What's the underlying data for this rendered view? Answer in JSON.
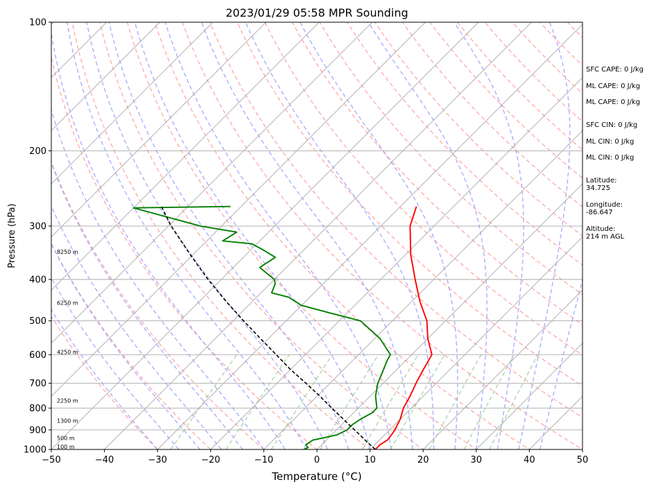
{
  "chart_data": {
    "type": "line",
    "title": "2023/01/29 05:58 MPR Sounding",
    "xlabel": "Temperature (°C)",
    "ylabel": "Pressure (hPa)",
    "xlim": [
      -50,
      50
    ],
    "ylim": [
      1000,
      100
    ],
    "y_scale": "log",
    "x_ticks": [
      -50,
      -40,
      -30,
      -20,
      -10,
      0,
      10,
      20,
      30,
      40,
      50
    ],
    "x_tick_labels": [
      "−50",
      "−40",
      "−30",
      "−20",
      "−10",
      "0",
      "10",
      "20",
      "30",
      "40",
      "50"
    ],
    "y_ticks": [
      1000,
      900,
      800,
      700,
      600,
      500,
      400,
      300,
      200,
      100
    ],
    "y_tick_labels": [
      "1000",
      "900",
      "800",
      "700",
      "600",
      "500",
      "400",
      "300",
      "200",
      "100"
    ],
    "grid": true,
    "skew_deg": 45,
    "background_lines": {
      "isotherms_step": 10,
      "dry_adiabats": true,
      "moist_adiabats": true,
      "mixing_ratio_lines": true
    },
    "colors": {
      "temperature": "#ff0000",
      "dewpoint": "#008000",
      "parcel": "#000000",
      "isotherm": "#a9a9a9",
      "dry_adiabat": "#ff9999",
      "moist_adiabat": "#9999ff",
      "mixing_ratio": "#99cc99"
    },
    "series": [
      {
        "key": "temperature",
        "pressure": [
          1000,
          975,
          950,
          925,
          900,
          850,
          800,
          750,
          700,
          650,
          600,
          550,
          500,
          450,
          400,
          350,
          300,
          270
        ],
        "values": [
          11.0,
          11.0,
          11.5,
          11.3,
          11.0,
          10.0,
          8.5,
          7.5,
          6.2,
          5.0,
          3.8,
          0.0,
          -3.5,
          -8.5,
          -13.5,
          -19.0,
          -24.5,
          -27.0
        ]
      },
      {
        "key": "dewpoint",
        "pressure": [
          1000,
          990,
          975,
          950,
          940,
          925,
          900,
          875,
          850,
          820,
          800,
          750,
          700,
          650,
          620,
          600,
          550,
          500,
          480,
          460,
          440,
          430,
          410,
          400,
          385,
          375,
          355,
          340,
          330,
          325,
          310,
          300,
          272,
          270
        ],
        "values": [
          -2.5,
          -2.0,
          -3.0,
          -2.5,
          -1.0,
          1.0,
          2.0,
          2.0,
          2.5,
          3.5,
          3.5,
          1.0,
          -1.0,
          -2.5,
          -3.5,
          -4.0,
          -9.0,
          -16.0,
          -23.0,
          -30.0,
          -34.0,
          -38.0,
          -39.0,
          -40.0,
          -43.0,
          -45.0,
          -44.0,
          -48.0,
          -51.0,
          -57.0,
          -56.0,
          -64.0,
          -80.0,
          -62.0
        ]
      },
      {
        "key": "parcel",
        "pressure": [
          1000,
          960,
          920,
          880,
          840,
          800,
          750,
          700,
          650,
          600,
          550,
          500,
          450,
          400,
          350,
          300,
          270
        ],
        "values": [
          11.0,
          8.0,
          5.0,
          1.8,
          -1.5,
          -5.0,
          -9.5,
          -14.5,
          -20.0,
          -25.5,
          -31.5,
          -38.0,
          -45.0,
          -52.5,
          -60.5,
          -69.5,
          -75.0
        ]
      }
    ],
    "height_labels": [
      {
        "text": "100 m",
        "pressure": 1000
      },
      {
        "text": "500 m",
        "pressure": 955
      },
      {
        "text": "1300 m",
        "pressure": 870
      },
      {
        "text": "2250 m",
        "pressure": 780
      },
      {
        "text": "4250 m",
        "pressure": 600
      },
      {
        "text": "6250 m",
        "pressure": 460
      },
      {
        "text": "8250 m",
        "pressure": 350
      }
    ]
  },
  "side_panel": {
    "sfc_cape": "SFC CAPE: 0 J/kg",
    "ml_cape": "ML CAPE: 0 J/kg",
    "ml_cape_2": "ML CAPE: 0 J/kg",
    "sfc_cin": "SFC CIN: 0 J/kg",
    "ml_cin": "ML CIN: 0 J/kg",
    "ml_cin_2": "ML CIN: 0 J/kg",
    "latitude_label": "Latitude:",
    "latitude": "34.725",
    "longitude_label": "Longitude:",
    "longitude": "-86.647",
    "altitude_label": "Altitude:",
    "altitude": "214 m AGL"
  }
}
